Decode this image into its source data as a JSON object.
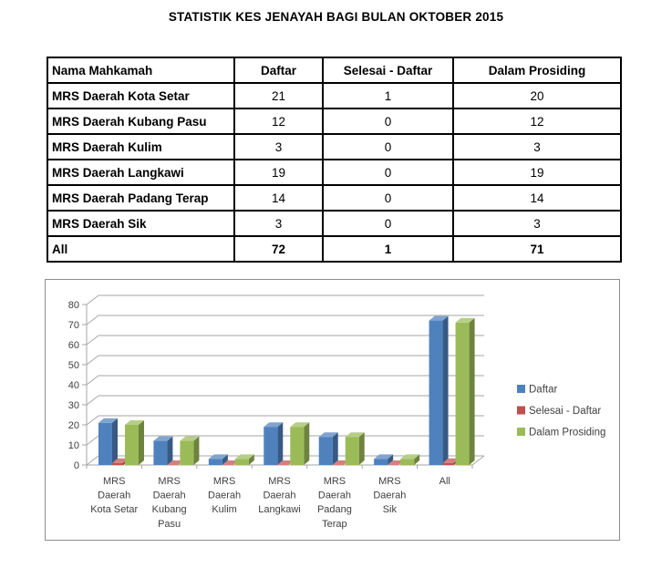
{
  "title": "STATISTIK KES JENAYAH BAGI BULAN OKTOBER 2015",
  "table": {
    "headers": [
      "Nama Mahkamah",
      "Daftar",
      "Selesai - Daftar",
      "Dalam Prosiding"
    ],
    "rows": [
      {
        "name": "MRS Daerah Kota Setar",
        "values": [
          21,
          1,
          20
        ]
      },
      {
        "name": "MRS Daerah Kubang Pasu",
        "values": [
          12,
          0,
          12
        ]
      },
      {
        "name": "MRS Daerah Kulim",
        "values": [
          3,
          0,
          3
        ]
      },
      {
        "name": "MRS Daerah Langkawi",
        "values": [
          19,
          0,
          19
        ]
      },
      {
        "name": "MRS Daerah Padang Terap",
        "values": [
          14,
          0,
          14
        ]
      },
      {
        "name": "MRS Daerah Sik",
        "values": [
          3,
          0,
          3
        ]
      }
    ],
    "total_row": {
      "name": "All",
      "values": [
        72,
        1,
        71
      ]
    }
  },
  "chart_data": {
    "type": "bar",
    "style": "3d-clustered-column",
    "title": "",
    "xlabel": "",
    "ylabel": "",
    "ylim": [
      0,
      80
    ],
    "ytick_step": 10,
    "grid": true,
    "legend_position": "right",
    "categories": [
      [
        "MRS",
        "Daerah",
        "Kota Setar"
      ],
      [
        "MRS",
        "Daerah",
        "Kubang",
        "Pasu"
      ],
      [
        "MRS",
        "Daerah",
        "Kulim"
      ],
      [
        "MRS",
        "Daerah",
        "Langkawi"
      ],
      [
        "MRS",
        "Daerah",
        "Padang",
        "Terap"
      ],
      [
        "MRS",
        "Daerah",
        "Sik"
      ],
      [
        "All"
      ]
    ],
    "series": [
      {
        "name": "Daftar",
        "color": "#4F81BD",
        "values": [
          21,
          12,
          3,
          19,
          14,
          3,
          72
        ]
      },
      {
        "name": "Selesai - Daftar",
        "color": "#C0504D",
        "values": [
          1,
          0,
          0,
          0,
          0,
          0,
          1
        ]
      },
      {
        "name": "Dalam Prosiding",
        "color": "#9BBB59",
        "values": [
          20,
          12,
          3,
          19,
          14,
          3,
          71
        ]
      }
    ]
  },
  "colors": {
    "grid": "#A6A6A6",
    "axis_text": "#3F3F3F",
    "chart_border": "#8C8C8C",
    "table_border": "#000000"
  }
}
